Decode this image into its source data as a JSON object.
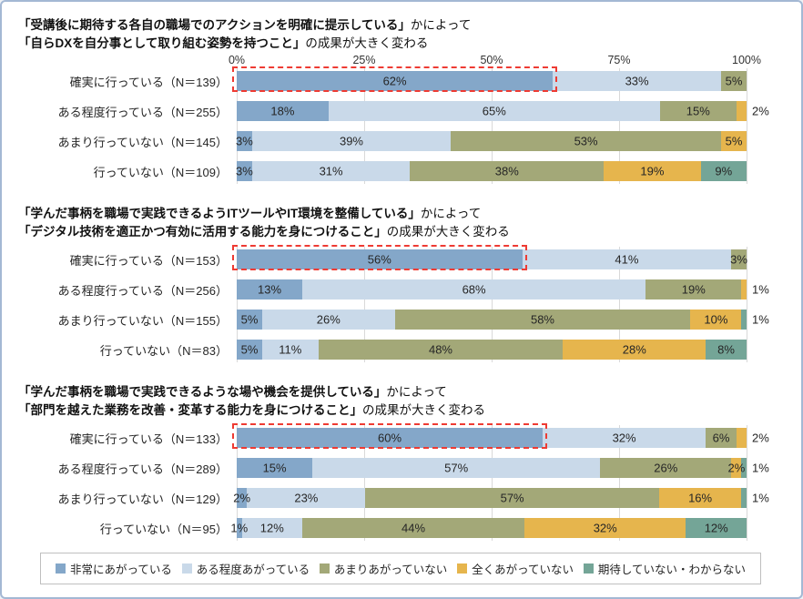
{
  "figure": {
    "axis_ticks": [
      "0%",
      "25%",
      "50%",
      "75%",
      "100%"
    ],
    "series_colors": [
      "#84a7c9",
      "#c9d9e9",
      "#a3a878",
      "#e6b54d",
      "#74a597"
    ],
    "highlight_color": "#ee3b33",
    "legend": [
      "非常にあがっている",
      "ある程度あがっている",
      "あまりあがっていない",
      "全くあがっていない",
      "期待していない・わからない"
    ]
  },
  "chart_data": [
    {
      "type": "stacked-bar-horizontal",
      "title": [
        {
          "strong": "「受講後に期待する各自の職場でのアクションを明確に提示している」",
          "normal": "かによって"
        },
        {
          "strong": "「自らDXを自分事として取り組む姿勢を持つこと」",
          "normal": "の成果が大きく変わる"
        }
      ],
      "series": [
        "非常にあがっている",
        "ある程度あがっている",
        "あまりあがっていない",
        "全くあがっていない",
        "期待していない・わからない"
      ],
      "categories": [
        "確実に行っている（N＝139）",
        "ある程度行っている（N＝255）",
        "あまり行っていない（N＝145）",
        "行っていない（N＝109）"
      ],
      "rows": [
        [
          62,
          33,
          5,
          0,
          0
        ],
        [
          18,
          65,
          15,
          2,
          0
        ],
        [
          3,
          39,
          53,
          5,
          0
        ],
        [
          3,
          31,
          38,
          19,
          9
        ]
      ],
      "highlight_row": 0,
      "xlim": [
        0,
        100
      ]
    },
    {
      "type": "stacked-bar-horizontal",
      "title": [
        {
          "strong": "「学んだ事柄を職場で実践できるようITツールやIT環境を整備している」",
          "normal": "かによって"
        },
        {
          "strong": "「デジタル技術を適正かつ有効に活用する能力を身につけること」",
          "normal": "の成果が大きく変わる"
        }
      ],
      "series": [
        "非常にあがっている",
        "ある程度あがっている",
        "あまりあがっていない",
        "全くあがっていない",
        "期待していない・わからない"
      ],
      "categories": [
        "確実に行っている（N＝153）",
        "ある程度行っている（N＝256）",
        "あまり行っていない（N＝155）",
        "行っていない（N＝83）"
      ],
      "rows": [
        [
          56,
          41,
          3,
          0,
          0
        ],
        [
          13,
          68,
          19,
          1,
          0
        ],
        [
          5,
          26,
          58,
          10,
          1
        ],
        [
          5,
          11,
          48,
          28,
          8
        ]
      ],
      "highlight_row": 0,
      "xlim": [
        0,
        100
      ]
    },
    {
      "type": "stacked-bar-horizontal",
      "title": [
        {
          "strong": "「学んだ事柄を職場で実践できるような場や機会を提供している」",
          "normal": "かによって"
        },
        {
          "strong": "「部門を越えた業務を改善・変革する能力を身につけること」",
          "normal": "の成果が大きく変わる"
        }
      ],
      "series": [
        "非常にあがっている",
        "ある程度あがっている",
        "あまりあがっていない",
        "全くあがっていない",
        "期待していない・わからない"
      ],
      "categories": [
        "確実に行っている（N＝133）",
        "ある程度行っている（N＝289）",
        "あまり行っていない（N＝129）",
        "行っていない（N＝95）"
      ],
      "rows": [
        [
          60,
          32,
          6,
          2,
          0
        ],
        [
          15,
          57,
          26,
          2,
          1
        ],
        [
          2,
          23,
          57,
          16,
          1
        ],
        [
          1,
          12,
          44,
          32,
          12
        ]
      ],
      "highlight_row": 0,
      "xlim": [
        0,
        100
      ]
    }
  ]
}
